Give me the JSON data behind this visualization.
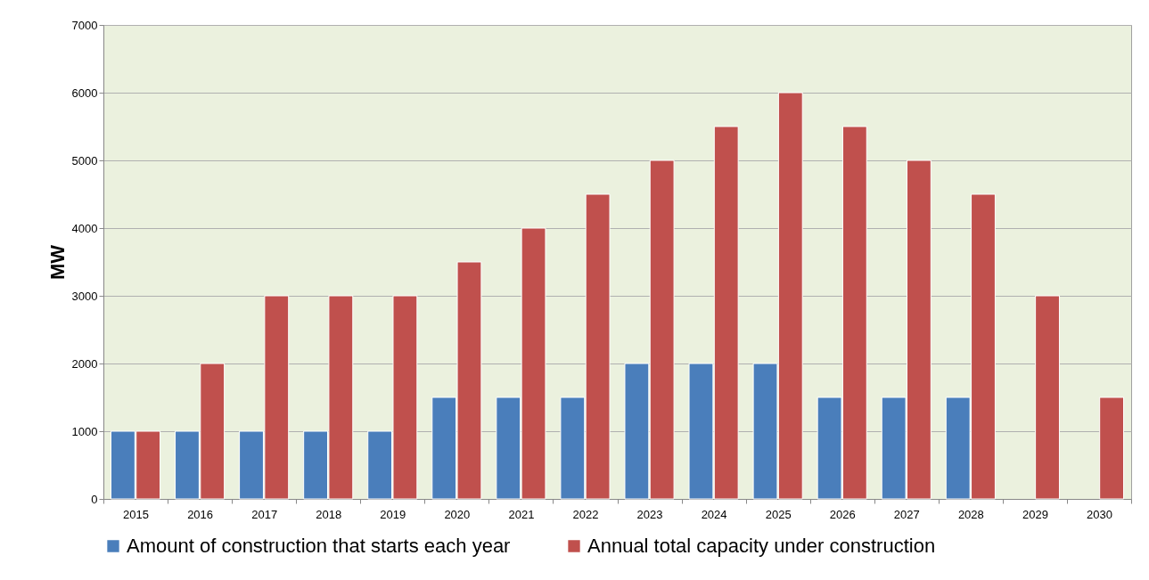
{
  "chart_data": {
    "type": "bar",
    "ylabel": "MW",
    "categories": [
      "2015",
      "2016",
      "2017",
      "2018",
      "2019",
      "2020",
      "2021",
      "2022",
      "2023",
      "2024",
      "2025",
      "2026",
      "2027",
      "2028",
      "2029",
      "2030"
    ],
    "series": [
      {
        "name": "Amount of construction that starts each year",
        "color": "#4a7ebb",
        "values": [
          1000,
          1000,
          1000,
          1000,
          1000,
          1500,
          1500,
          1500,
          2000,
          2000,
          2000,
          1500,
          1500,
          1500,
          null,
          null
        ]
      },
      {
        "name": "Annual total capacity under construction",
        "color": "#c0504d",
        "values": [
          1000,
          2000,
          3000,
          3000,
          3000,
          3500,
          4000,
          4500,
          5000,
          5500,
          6000,
          5500,
          5000,
          4500,
          3000,
          1500
        ]
      }
    ],
    "ylim": [
      0,
      7000
    ],
    "yticks": [
      0,
      1000,
      2000,
      3000,
      4000,
      5000,
      6000,
      7000
    ],
    "grid": "y",
    "legend": "bottom"
  }
}
